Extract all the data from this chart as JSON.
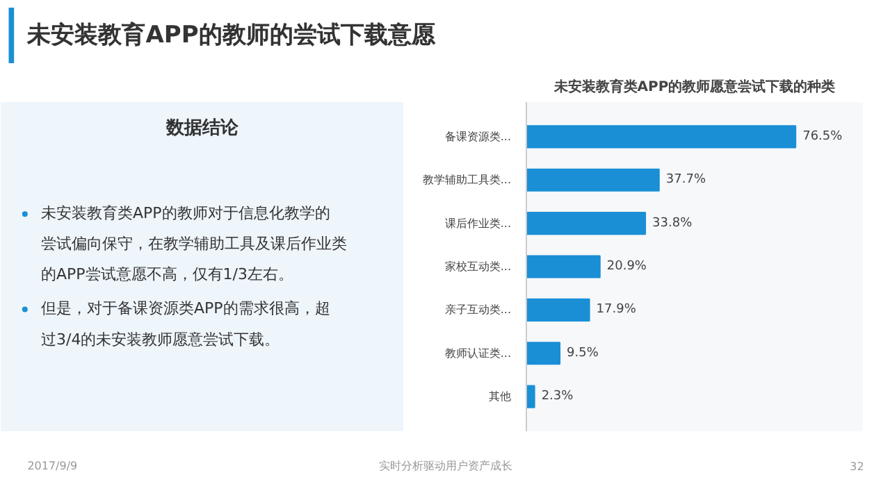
{
  "chart_data": [
    {
      "type": "other",
      "title": "未安装教育APP的教师的尝试下载意愿",
      "annotations": [
        "2017/9/9",
        "实时分析驱动用户资产成长",
        "32"
      ]
    },
    {
      "type": "other",
      "title": "数据结论",
      "annotations": [
        "未安装教育类APP的教师对于信息化教学的尝试偏向保守，在教学辅助工具及课后作业类的APP尝试意愿不高，仅有1/3左右。",
        "但是，对于备课资源类APP的需求很高，超过3/4的未安装教师愿意尝试下载。"
      ]
    },
    {
      "type": "bar",
      "orientation": "horizontal",
      "title": "未安装教育类APP的教师愿意尝试下载的种类",
      "categories": [
        "备课资源类...",
        "教学辅助工具类...",
        "课后作业类...",
        "家校互动类...",
        "亲子互动类...",
        "教师认证类...",
        "其他"
      ],
      "values": [
        76.5,
        37.7,
        33.8,
        20.9,
        17.9,
        9.5,
        2.3
      ],
      "value_labels": [
        "76.5%",
        "37.7%",
        "33.8%",
        "20.9%",
        "17.9%",
        "9.5%",
        "2.3%"
      ],
      "color": "#1a8fd6",
      "grid": false
    }
  ]
}
